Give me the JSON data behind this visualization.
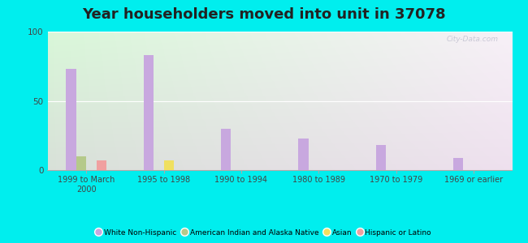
{
  "title": "Year householders moved into unit in 37078",
  "categories": [
    "1999 to March\n2000",
    "1995 to 1998",
    "1990 to 1994",
    "1980 to 1989",
    "1970 to 1979",
    "1969 or earlier"
  ],
  "series": {
    "White Non-Hispanic": [
      73,
      83,
      30,
      23,
      18,
      9
    ],
    "American Indian and Alaska Native": [
      10,
      0,
      0,
      0,
      0,
      0
    ],
    "Asian": [
      0,
      7,
      0,
      0,
      0,
      0
    ],
    "Hispanic or Latino": [
      7,
      0,
      0,
      0,
      0,
      0
    ]
  },
  "colors": {
    "White Non-Hispanic": "#c8a8df",
    "American Indian and Alaska Native": "#b5c98a",
    "Asian": "#f0e060",
    "Hispanic or Latino": "#f0a0a0"
  },
  "ylim": [
    0,
    100
  ],
  "yticks": [
    0,
    50,
    100
  ],
  "outer_background": "#00eeee",
  "title_fontsize": 13,
  "watermark": "City-Data.com",
  "legend_entries": [
    "White Non-Hispanic",
    "American Indian and Alaska Native",
    "Asian",
    "Hispanic or Latino"
  ]
}
